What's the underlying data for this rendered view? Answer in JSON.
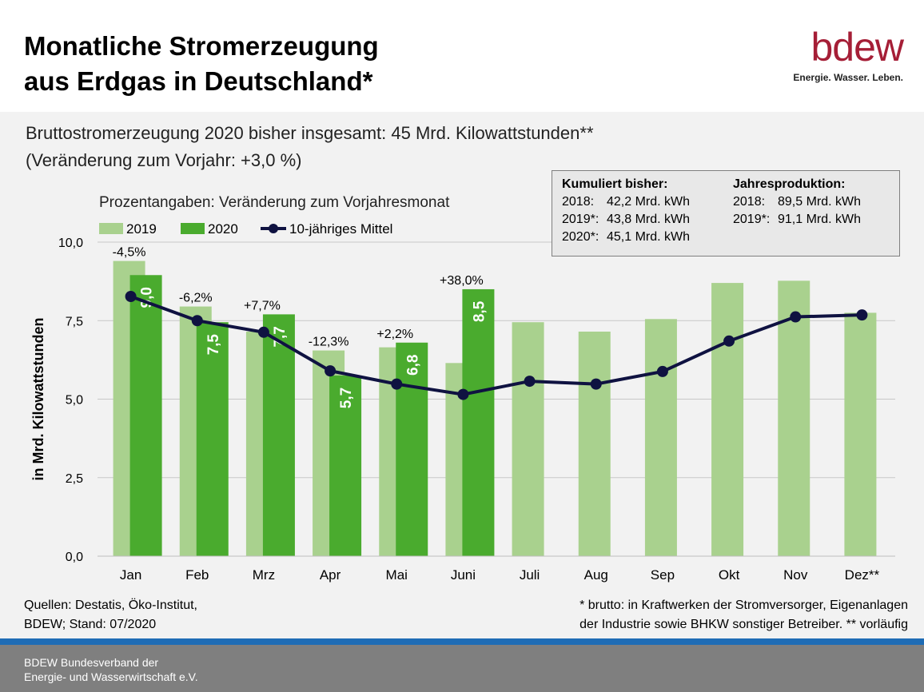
{
  "header": {
    "title": "Monatliche Stromerzeugung\naus Erdgas in Deutschland*",
    "logo_text": "bdew",
    "logo_tagline": "Energie. Wasser. Leben."
  },
  "subtitle": {
    "line1": "Bruttostromerzeugung 2020 bisher insgesamt: 45 Mrd. Kilowattstunden**",
    "line2": "(Veränderung zum Vorjahr: +3,0 %)"
  },
  "infobox": {
    "left_heading": "Kumuliert bisher:",
    "left_rows": [
      {
        "year": "2018:",
        "value": "42,2 Mrd. kWh"
      },
      {
        "year": "2019*:",
        "value": "43,8 Mrd. kWh"
      },
      {
        "year": "2020*:",
        "value": "45,1 Mrd. kWh"
      }
    ],
    "right_heading": "Jahresproduktion:",
    "right_rows": [
      {
        "year": "2018:",
        "value": "89,5 Mrd. kWh"
      },
      {
        "year": "2019*:",
        "value": "91,1 Mrd. kWh"
      }
    ]
  },
  "sources": {
    "line1": "Quellen: Destatis, Öko-Institut,",
    "line2": "BDEW; Stand: 07/2020"
  },
  "footnote": {
    "line1": "* brutto: in Kraftwerken der Stromversorger, Eigenanlagen",
    "line2": "der Industrie sowie BHKW sonstiger Betreiber. ** vorläufig"
  },
  "footer": {
    "line1": "BDEW Bundesverband der",
    "line2": "Energie- und Wasserwirtschaft e.V."
  },
  "colors": {
    "bar_2019": "#a9d18e",
    "bar_2020": "#4aab2e",
    "line_avg": "#0f1241",
    "brand": "#a51e36",
    "footer_bg": "#7f7f7f",
    "blue_line": "#1f6cb5"
  },
  "chart_data": {
    "type": "bar",
    "annotation": "Prozentangaben: Veränderung zum Vorjahresmonat",
    "ylabel": "in Mrd. Kilowattstunden",
    "ylim": [
      0,
      10
    ],
    "yticks": [
      "0,0",
      "2,5",
      "5,0",
      "7,5",
      "10,0"
    ],
    "ytick_values": [
      0,
      2.5,
      5,
      7.5,
      10
    ],
    "categories": [
      "Jan",
      "Feb",
      "Mrz",
      "Apr",
      "Mai",
      "Juni",
      "Juli",
      "Aug",
      "Sep",
      "Okt",
      "Nov",
      "Dez**"
    ],
    "legend_position": "top-left",
    "series": [
      {
        "name": "2019",
        "type": "bar",
        "values": [
          9.4,
          7.95,
          7.15,
          6.55,
          6.65,
          6.15,
          7.45,
          7.15,
          7.55,
          8.7,
          8.77,
          7.75
        ]
      },
      {
        "name": "2020",
        "type": "bar",
        "values": [
          8.95,
          7.45,
          7.7,
          5.75,
          6.8,
          8.5,
          null,
          null,
          null,
          null,
          null,
          null
        ],
        "value_labels": [
          "9,0",
          "7,5",
          "7,7",
          "5,7",
          "6,8",
          "8,5"
        ]
      },
      {
        "name": "10-jähriges Mittel",
        "type": "line",
        "values": [
          8.27,
          7.5,
          7.13,
          5.9,
          5.48,
          5.15,
          5.57,
          5.48,
          5.88,
          6.85,
          7.62,
          7.68
        ]
      }
    ],
    "change_labels": [
      "-4,5%",
      "-6,2%",
      "+7,7%",
      "-12,3%",
      "+2,2%",
      "+38,0%"
    ]
  }
}
